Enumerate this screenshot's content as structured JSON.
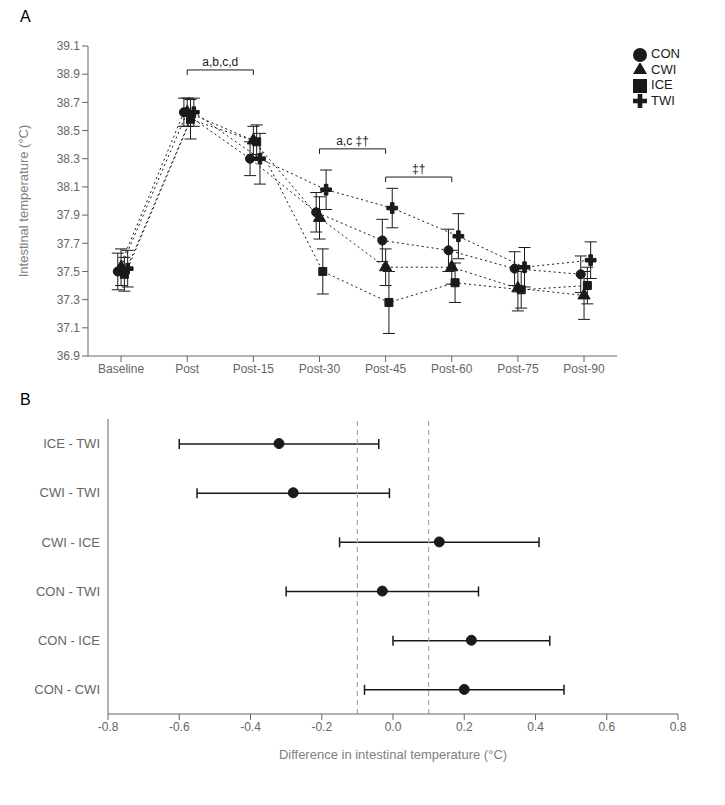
{
  "chart_data": [
    {
      "type": "scatter",
      "title": "A",
      "categories": [
        "Baseline",
        "Post",
        "Post-15",
        "Post-30",
        "Post-45",
        "Post-60",
        "Post-75",
        "Post-90"
      ],
      "series": [
        {
          "name": "CON",
          "marker": "circle",
          "values": [
            37.5,
            38.63,
            38.3,
            37.92,
            37.72,
            37.65,
            37.52,
            37.48
          ],
          "errors": [
            0.13,
            0.1,
            0.12,
            0.14,
            0.15,
            0.15,
            0.12,
            0.13
          ]
        },
        {
          "name": "CWI",
          "marker": "triangle",
          "values": [
            37.53,
            38.63,
            38.43,
            37.88,
            37.53,
            37.53,
            37.38,
            37.33
          ],
          "errors": [
            0.13,
            0.1,
            0.1,
            0.15,
            0.13,
            0.12,
            0.16,
            0.17
          ]
        },
        {
          "name": "ICE",
          "marker": "square",
          "values": [
            37.48,
            38.58,
            38.42,
            37.5,
            37.28,
            37.42,
            37.37,
            37.4
          ],
          "errors": [
            0.12,
            0.14,
            0.12,
            0.16,
            0.22,
            0.14,
            0.13,
            0.13
          ]
        },
        {
          "name": "TWI",
          "marker": "cross",
          "values": [
            37.52,
            38.63,
            38.3,
            38.08,
            37.95,
            37.75,
            37.53,
            37.58
          ],
          "errors": [
            0.13,
            0.1,
            0.18,
            0.14,
            0.14,
            0.16,
            0.14,
            0.13
          ]
        }
      ],
      "ylim": [
        36.9,
        39.1
      ],
      "yticks": [
        36.9,
        37.1,
        37.3,
        37.5,
        37.7,
        37.9,
        38.1,
        38.3,
        38.5,
        38.7,
        38.9,
        39.1
      ],
      "ylabel": "Intestinal temperature (°C)",
      "color": "#1a1a1a",
      "line_style": "dotted",
      "legend": "right",
      "annotations": [
        {
          "text": "a,b,c,d",
          "x": [
            "Post",
            "Post-15"
          ],
          "y": 38.93
        },
        {
          "text": "a,c ‡†",
          "x": [
            "Post-30",
            "Post-45"
          ],
          "y": 38.37
        },
        {
          "text": "‡†",
          "x": [
            "Post-45",
            "Post-60"
          ],
          "y": 38.17
        }
      ]
    },
    {
      "type": "interval",
      "title": "B",
      "orientation": "horizontal",
      "categories": [
        "ICE - TWI",
        "CWI - TWI",
        "CWI - ICE",
        "CON - TWI",
        "CON - ICE",
        "CON - CWI"
      ],
      "values": [
        -0.32,
        -0.28,
        0.13,
        -0.03,
        0.22,
        0.2
      ],
      "ci_low": [
        -0.6,
        -0.55,
        -0.15,
        -0.3,
        0.0,
        -0.08
      ],
      "ci_high": [
        -0.04,
        -0.01,
        0.41,
        0.24,
        0.44,
        0.48
      ],
      "xlim": [
        -0.8,
        0.8
      ],
      "xticks": [
        -0.8,
        -0.6,
        -0.4,
        -0.2,
        {
          "value": 0,
          "label": "0.0"
        },
        0.2,
        0.4,
        0.6,
        0.8
      ],
      "xlabel": "Difference in intestinal temperature (°C)",
      "color": "#1a1a1a",
      "vlines": [
        {
          "value": -0.1,
          "color": "#aaaaaa",
          "line_style": "dashed"
        },
        {
          "value": 0.1,
          "color": "#aaaaaa",
          "line_style": "dashed"
        }
      ]
    }
  ]
}
